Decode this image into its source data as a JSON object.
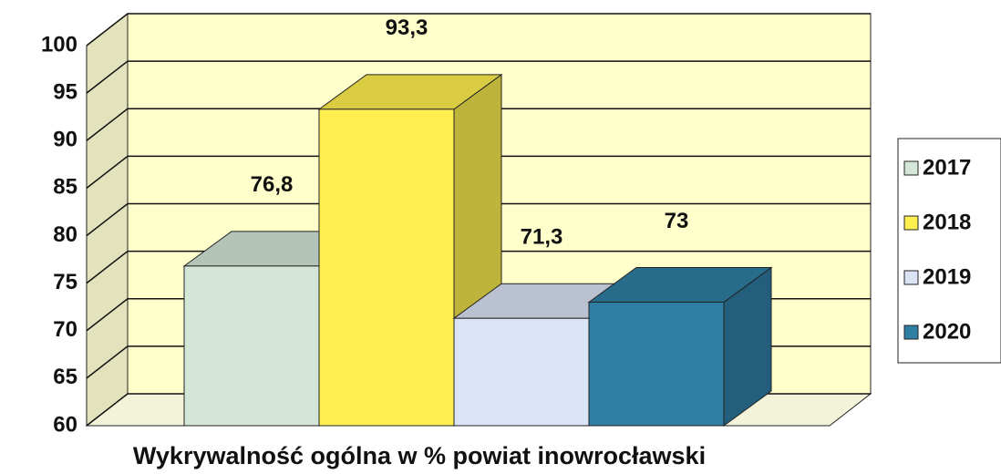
{
  "chart_data": {
    "type": "bar3d",
    "title": "Wykrywalność ogólna w % powiat inowrocławski",
    "series": [
      {
        "name": "2017",
        "color": "#d4e6d8",
        "values": [
          76.8
        ],
        "value_labels": [
          "76,8"
        ]
      },
      {
        "name": "2018",
        "color": "#fff04f",
        "values": [
          93.3
        ],
        "value_labels": [
          "93,3"
        ]
      },
      {
        "name": "2019",
        "color": "#dbe4f6",
        "values": [
          71.3
        ],
        "value_labels": [
          "71,3"
        ]
      },
      {
        "name": "2020",
        "color": "#2f7fa5",
        "values": [
          73
        ],
        "value_labels": [
          "73"
        ]
      }
    ],
    "ylim": [
      60,
      100
    ],
    "yticks": [
      60,
      65,
      70,
      75,
      80,
      85,
      90,
      95,
      100
    ],
    "grid": true,
    "legend": "right"
  }
}
